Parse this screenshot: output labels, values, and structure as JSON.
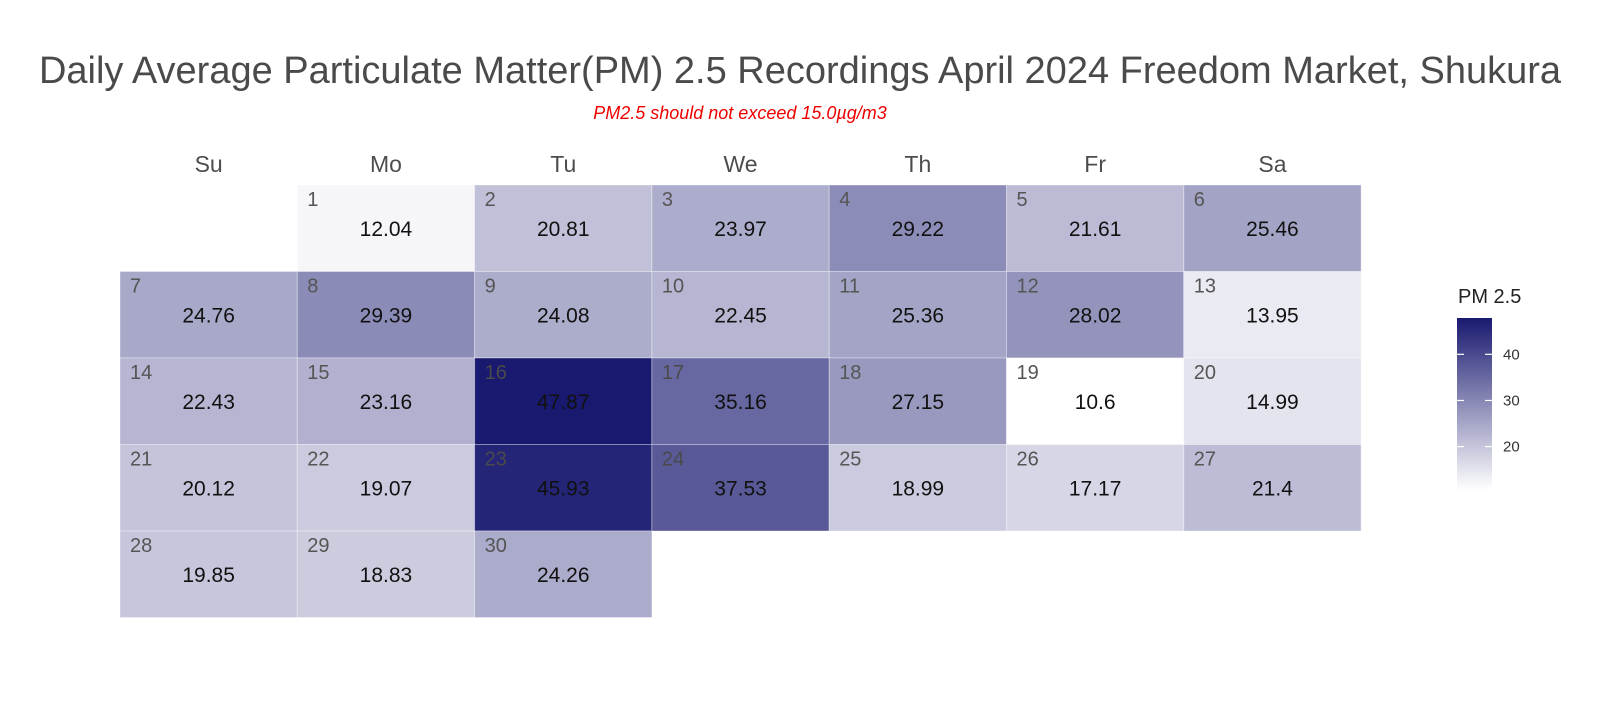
{
  "chart_data": {
    "type": "heatmap",
    "title": "Daily Average Particulate Matter(PM) 2.5 Recordings April 2024 Freedom Market, Shukura",
    "subtitle": "PM2.5 should not exceed 15.0µg/m3",
    "weekdays": [
      "Su",
      "Mo",
      "Tu",
      "We",
      "Th",
      "Fr",
      "Sa"
    ],
    "first_weekday_index": 1,
    "days": [
      1,
      2,
      3,
      4,
      5,
      6,
      7,
      8,
      9,
      10,
      11,
      12,
      13,
      14,
      15,
      16,
      17,
      18,
      19,
      20,
      21,
      22,
      23,
      24,
      25,
      26,
      27,
      28,
      29,
      30
    ],
    "values": [
      "12.04",
      "20.81",
      "23.97",
      "29.22",
      "21.61",
      "25.46",
      "24.76",
      "29.39",
      "24.08",
      "22.45",
      "25.36",
      "28.02",
      "13.95",
      "22.43",
      "23.16",
      "47.87",
      "35.16",
      "27.15",
      "10.6",
      "14.99",
      "20.12",
      "19.07",
      "45.93",
      "37.53",
      "18.99",
      "17.17",
      "21.4",
      "19.85",
      "18.83",
      "24.26"
    ],
    "legend": {
      "title": "PM 2.5",
      "ticks": [
        20,
        30,
        40
      ],
      "range": [
        10.6,
        47.87
      ],
      "colors": {
        "low": "#ffffff",
        "high": "#191970"
      }
    }
  }
}
